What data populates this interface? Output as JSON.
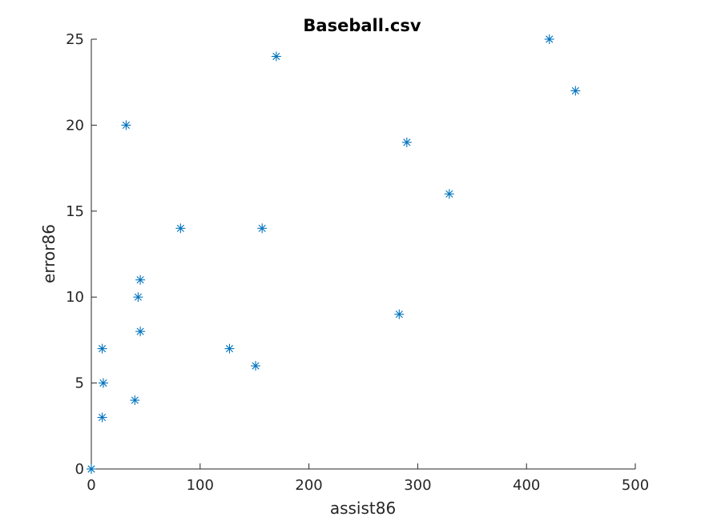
{
  "chart_data": {
    "type": "scatter",
    "title": "Baseball.csv",
    "xlabel": "assist86",
    "ylabel": "error86",
    "xlim": [
      0,
      500
    ],
    "ylim": [
      0,
      25
    ],
    "xticks": [
      0,
      100,
      200,
      300,
      400,
      500
    ],
    "yticks": [
      0,
      5,
      10,
      15,
      20,
      25
    ],
    "xtick_labels": [
      "0",
      "100",
      "200",
      "300",
      "400",
      "500"
    ],
    "ytick_labels": [
      "0",
      "5",
      "10",
      "15",
      "20",
      "25"
    ],
    "grid": false,
    "legend": "none",
    "marker": "asterisk",
    "marker_color": "#0072BD",
    "axis_color": "#262626",
    "series": [
      {
        "x": [
          0,
          10,
          11,
          10,
          40,
          43,
          45,
          45,
          32,
          82,
          127,
          151,
          157,
          170,
          283,
          290,
          329,
          421,
          445
        ],
        "y": [
          0,
          3,
          5,
          7,
          4,
          10,
          8,
          11,
          20,
          14,
          7,
          6,
          14,
          24,
          9,
          19,
          16,
          25,
          22
        ]
      }
    ]
  }
}
